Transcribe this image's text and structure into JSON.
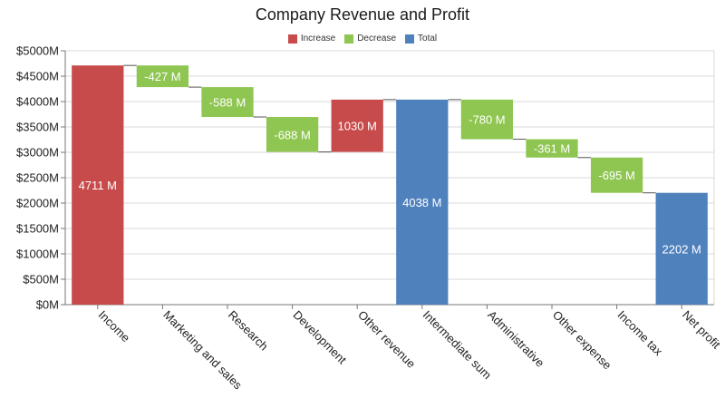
{
  "chart_data": {
    "type": "bar",
    "subtype": "waterfall",
    "title": "Company Revenue and Profit",
    "categories": [
      "Income",
      "Marketing and sales",
      "Research",
      "Development",
      "Other revenue",
      "Intermediate sum",
      "Administrative",
      "Other expense",
      "Income tax",
      "Net profit"
    ],
    "values": [
      4711,
      -427,
      -588,
      -688,
      1030,
      4038,
      -780,
      -361,
      -695,
      2202
    ],
    "kinds": [
      "increase",
      "decrease",
      "decrease",
      "decrease",
      "increase",
      "total",
      "decrease",
      "decrease",
      "decrease",
      "total"
    ],
    "data_labels": [
      "4711 M",
      "-427 M",
      "-588 M",
      "-688 M",
      "1030 M",
      "4038 M",
      "-780 M",
      "-361 M",
      "-695 M",
      "2202 M"
    ],
    "legend": [
      {
        "name": "Increase",
        "color": "#c84b4b"
      },
      {
        "name": "Decrease",
        "color": "#8fc651"
      },
      {
        "name": "Total",
        "color": "#4f81bd"
      }
    ],
    "legend_position": "top-center",
    "ylim": [
      0,
      5000
    ],
    "yticks": [
      0,
      500,
      1000,
      1500,
      2000,
      2500,
      3000,
      3500,
      4000,
      4500,
      5000
    ],
    "ytick_labels": [
      "$0M",
      "$500M",
      "$1000M",
      "$1500M",
      "$2000M",
      "$2500M",
      "$3000M",
      "$3500M",
      "$4000M",
      "$4500M",
      "$5000M"
    ],
    "xlabel": "",
    "ylabel": "",
    "grid": true
  }
}
